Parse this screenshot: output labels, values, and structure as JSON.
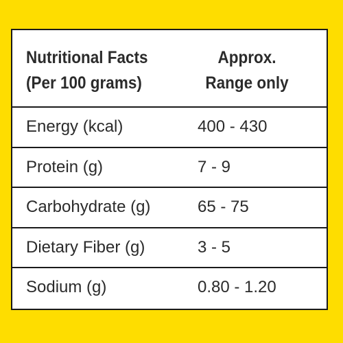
{
  "colors": {
    "background": "#fedd00",
    "panel": "#ffffff",
    "border": "#1a1a1a",
    "text": "#2b2b2b"
  },
  "header": {
    "left_line1": "Nutritional Facts",
    "left_line2": "(Per 100 grams)",
    "right_line1": "Approx.",
    "right_line2": "Range only"
  },
  "rows": [
    {
      "name": "Energy (kcal)",
      "value": "400 - 430"
    },
    {
      "name": "Protein (g)",
      "value": "7 - 9"
    },
    {
      "name": "Carbohydrate (g)",
      "value": "65 - 75"
    },
    {
      "name": "Dietary Fiber (g)",
      "value": "3 - 5"
    },
    {
      "name": "Sodium (g)",
      "value": "0.80 - 1.20"
    }
  ]
}
